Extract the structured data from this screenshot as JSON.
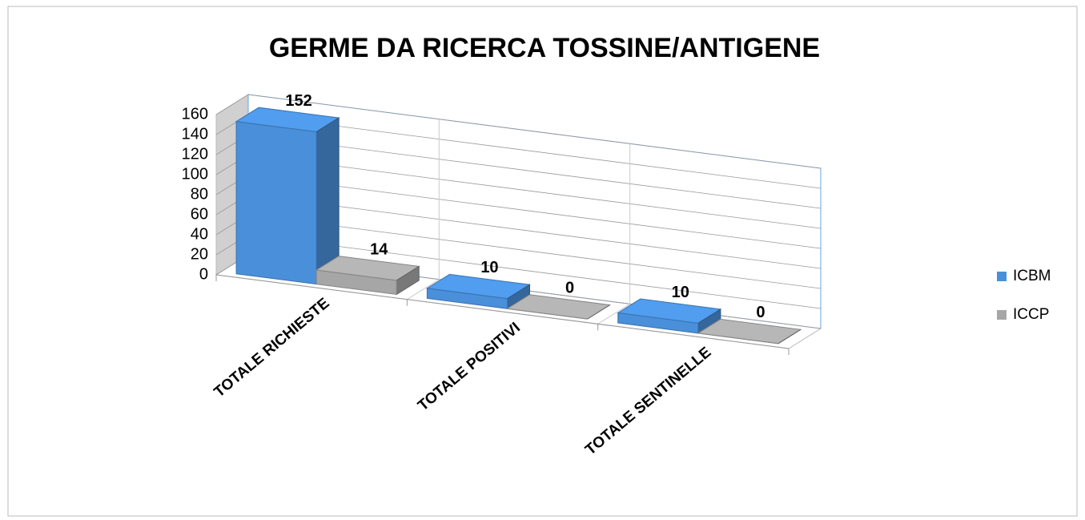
{
  "chart_data": {
    "type": "bar3d",
    "title": "GERME DA RICERCA TOSSINE/ANTIGENE",
    "categories": [
      "TOTALE RICHIESTE",
      "TOTALE POSITIVI",
      "TOTALE SENTINELLE"
    ],
    "series": [
      {
        "name": "ICBM",
        "color": "#4a8fd9",
        "values": [
          152,
          10,
          10
        ]
      },
      {
        "name": "ICCP",
        "color": "#a6a6a6",
        "values": [
          14,
          0,
          0
        ]
      }
    ],
    "ylim": [
      0,
      160
    ],
    "yticks": [
      0,
      20,
      40,
      60,
      80,
      100,
      120,
      140,
      160
    ],
    "grid": true,
    "legend": "right"
  }
}
